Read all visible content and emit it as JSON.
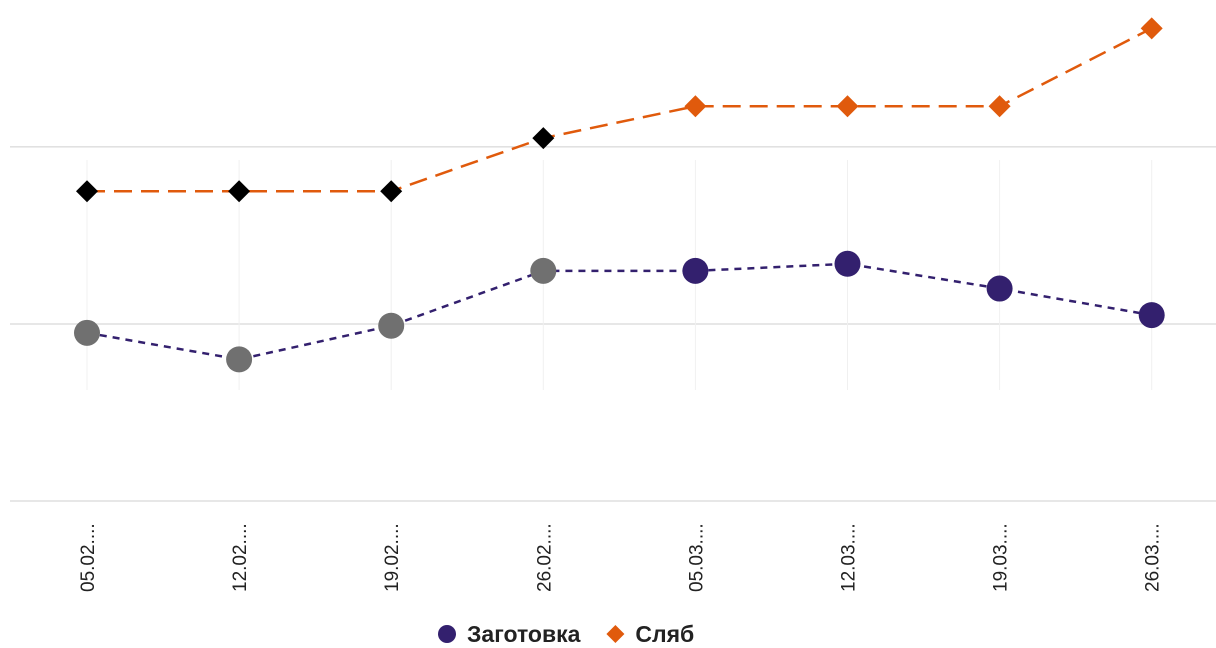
{
  "chart_data": {
    "type": "line",
    "categories": [
      "05.02....",
      "12.02....",
      "19.02....",
      "26.02....",
      "05.03....",
      "12.03....",
      "19.03....",
      "26.03...."
    ],
    "series": [
      {
        "name": "Заготовка",
        "color": "#33206e",
        "marker": "circle",
        "point_colors": [
          "#707070",
          "#707070",
          "#707070",
          "#707070",
          "#33206e",
          "#33206e",
          "#33206e",
          "#33206e"
        ],
        "values": [
          0.95,
          0.8,
          0.99,
          1.3,
          1.3,
          1.34,
          1.2,
          1.05
        ]
      },
      {
        "name": "Сляб",
        "color": "#e05a0c",
        "marker": "diamond",
        "point_colors": [
          "#000000",
          "#000000",
          "#000000",
          "#000000",
          "#e05a0c",
          "#e05a0c",
          "#e05a0c",
          "#e05a0c"
        ],
        "values": [
          1.75,
          1.75,
          1.75,
          2.05,
          2.23,
          2.23,
          2.23,
          2.67
        ]
      }
    ],
    "ylim": [
      0,
      2.83
    ],
    "yticks": [
      0,
      1,
      2
    ],
    "grid": true,
    "legend": "bottom"
  }
}
